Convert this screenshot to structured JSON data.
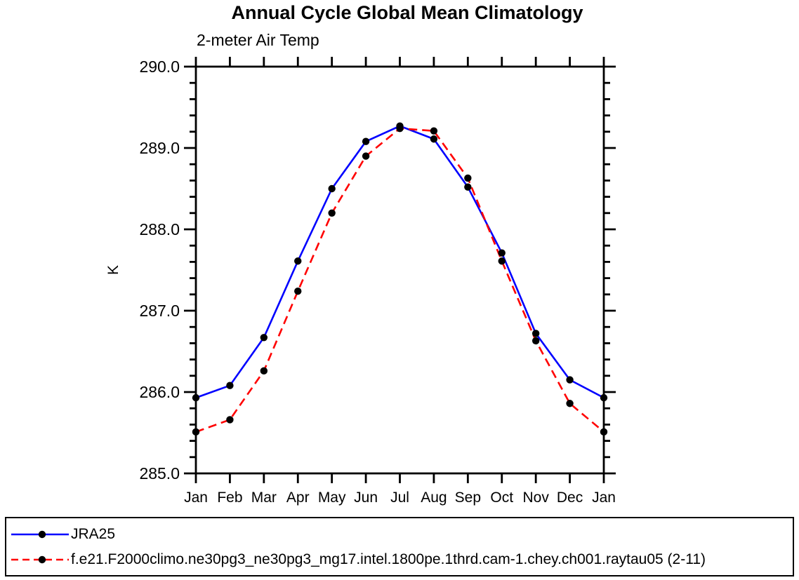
{
  "title": "Annual Cycle Global Mean Climatology",
  "subtitle": "2-meter Air Temp",
  "chart_data": {
    "type": "line",
    "title": "Annual Cycle Global Mean Climatology",
    "subtitle": "2-meter Air Temp",
    "xlabel": "",
    "ylabel": "K",
    "categories": [
      "Jan",
      "Feb",
      "Mar",
      "Apr",
      "May",
      "Jun",
      "Jul",
      "Aug",
      "Sep",
      "Oct",
      "Nov",
      "Dec",
      "Jan"
    ],
    "series": [
      {
        "name": "JRA25",
        "color": "#0000ff",
        "line_style": "solid",
        "marker": "filled-circle",
        "marker_color": "#000000",
        "values": [
          285.93,
          286.08,
          286.67,
          287.61,
          288.5,
          289.08,
          289.27,
          289.11,
          288.52,
          287.71,
          286.72,
          286.15,
          285.93
        ]
      },
      {
        "name": "f.e21.F2000climo.ne30pg3_ne30pg3_mg17.intel.1800pe.1thrd.cam-1.chey.ch001.raytau05 (2-11)",
        "color": "#ff0000",
        "line_style": "dashed",
        "marker": "filled-circle",
        "marker_color": "#000000",
        "values": [
          285.51,
          285.66,
          286.26,
          287.24,
          288.2,
          288.9,
          289.24,
          289.21,
          288.63,
          287.61,
          286.63,
          285.86,
          285.51
        ]
      }
    ],
    "ylim": [
      285.0,
      290.0
    ],
    "y_major_step": 1.0,
    "y_minor_step": 0.2,
    "y_tick_labels": [
      "285.0",
      "286.0",
      "287.0",
      "288.0",
      "289.0",
      "290.0"
    ],
    "grid": "off",
    "legend_position": "bottom",
    "axis_color": "#000000",
    "background_color": "#ffffff"
  }
}
